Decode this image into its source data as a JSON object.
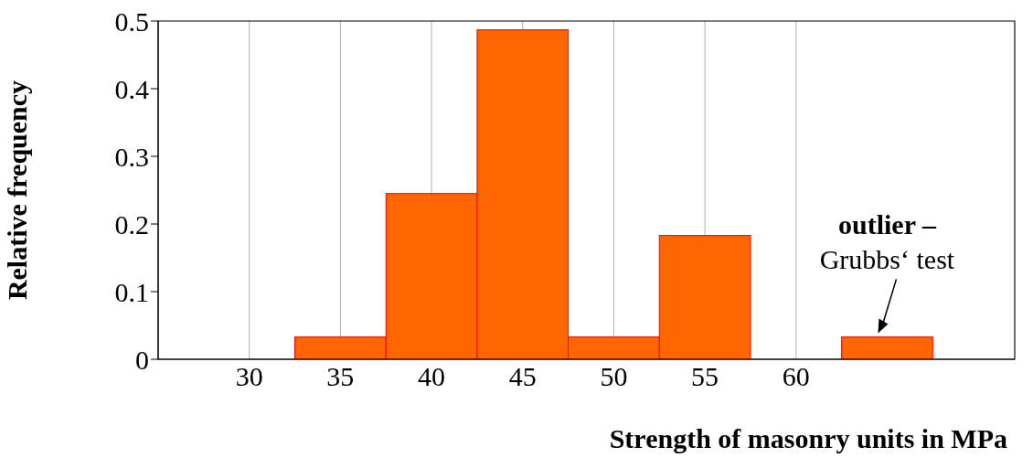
{
  "chart_data": {
    "type": "histogram",
    "xlabel": "Strength of masonry units in MPa",
    "ylabel": "Relative frequency",
    "bins": [
      32.5,
      37.5,
      42.5,
      47.5,
      52.5,
      57.5,
      62.5,
      67.5
    ],
    "values": [
      0.033,
      0.245,
      0.487,
      0.033,
      0.183,
      0,
      0.033
    ],
    "color": "#ff6600",
    "xlim": [
      25,
      72
    ],
    "xticks": [
      30,
      35,
      40,
      45,
      50,
      55,
      60
    ],
    "ylim": [
      0,
      0.5
    ],
    "yticks": [
      0,
      0.1,
      0.2,
      0.3,
      0.4,
      0.5
    ],
    "grid": "x",
    "annotations": [
      "outlier –",
      {
        "text": "Grubbs‘ test",
        "x": 65,
        "y": 0.033
      }
    ]
  }
}
